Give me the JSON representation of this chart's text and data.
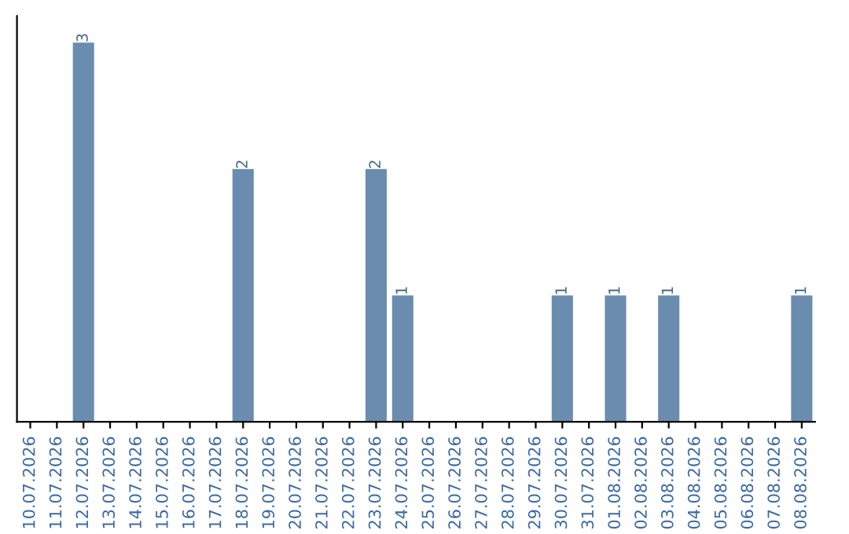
{
  "chart_data": {
    "type": "bar",
    "categories": [
      "10.07.2026",
      "11.07.2026",
      "12.07.2026",
      "13.07.2026",
      "14.07.2026",
      "15.07.2026",
      "16.07.2026",
      "17.07.2026",
      "18.07.2026",
      "19.07.2026",
      "20.07.2026",
      "21.07.2026",
      "22.07.2026",
      "23.07.2026",
      "24.07.2026",
      "25.07.2026",
      "26.07.2026",
      "27.07.2026",
      "28.07.2026",
      "29.07.2026",
      "30.07.2026",
      "31.07.2026",
      "01.08.2026",
      "02.08.2026",
      "03.08.2026",
      "04.08.2026",
      "05.08.2026",
      "06.08.2026",
      "07.08.2026",
      "08.08.2026"
    ],
    "values": [
      0,
      0,
      3,
      0,
      0,
      0,
      0,
      0,
      2,
      0,
      0,
      0,
      0,
      2,
      1,
      0,
      0,
      0,
      0,
      0,
      1,
      0,
      1,
      0,
      1,
      0,
      0,
      0,
      0,
      1
    ],
    "value_labels": [
      null,
      null,
      "3",
      null,
      null,
      null,
      null,
      null,
      "2",
      null,
      null,
      null,
      null,
      "2",
      "1",
      null,
      null,
      null,
      null,
      null,
      "1",
      null,
      "1",
      null,
      "1",
      null,
      null,
      null,
      null,
      "1"
    ],
    "color": "#6a8caf",
    "grid": false,
    "legend": false
  }
}
